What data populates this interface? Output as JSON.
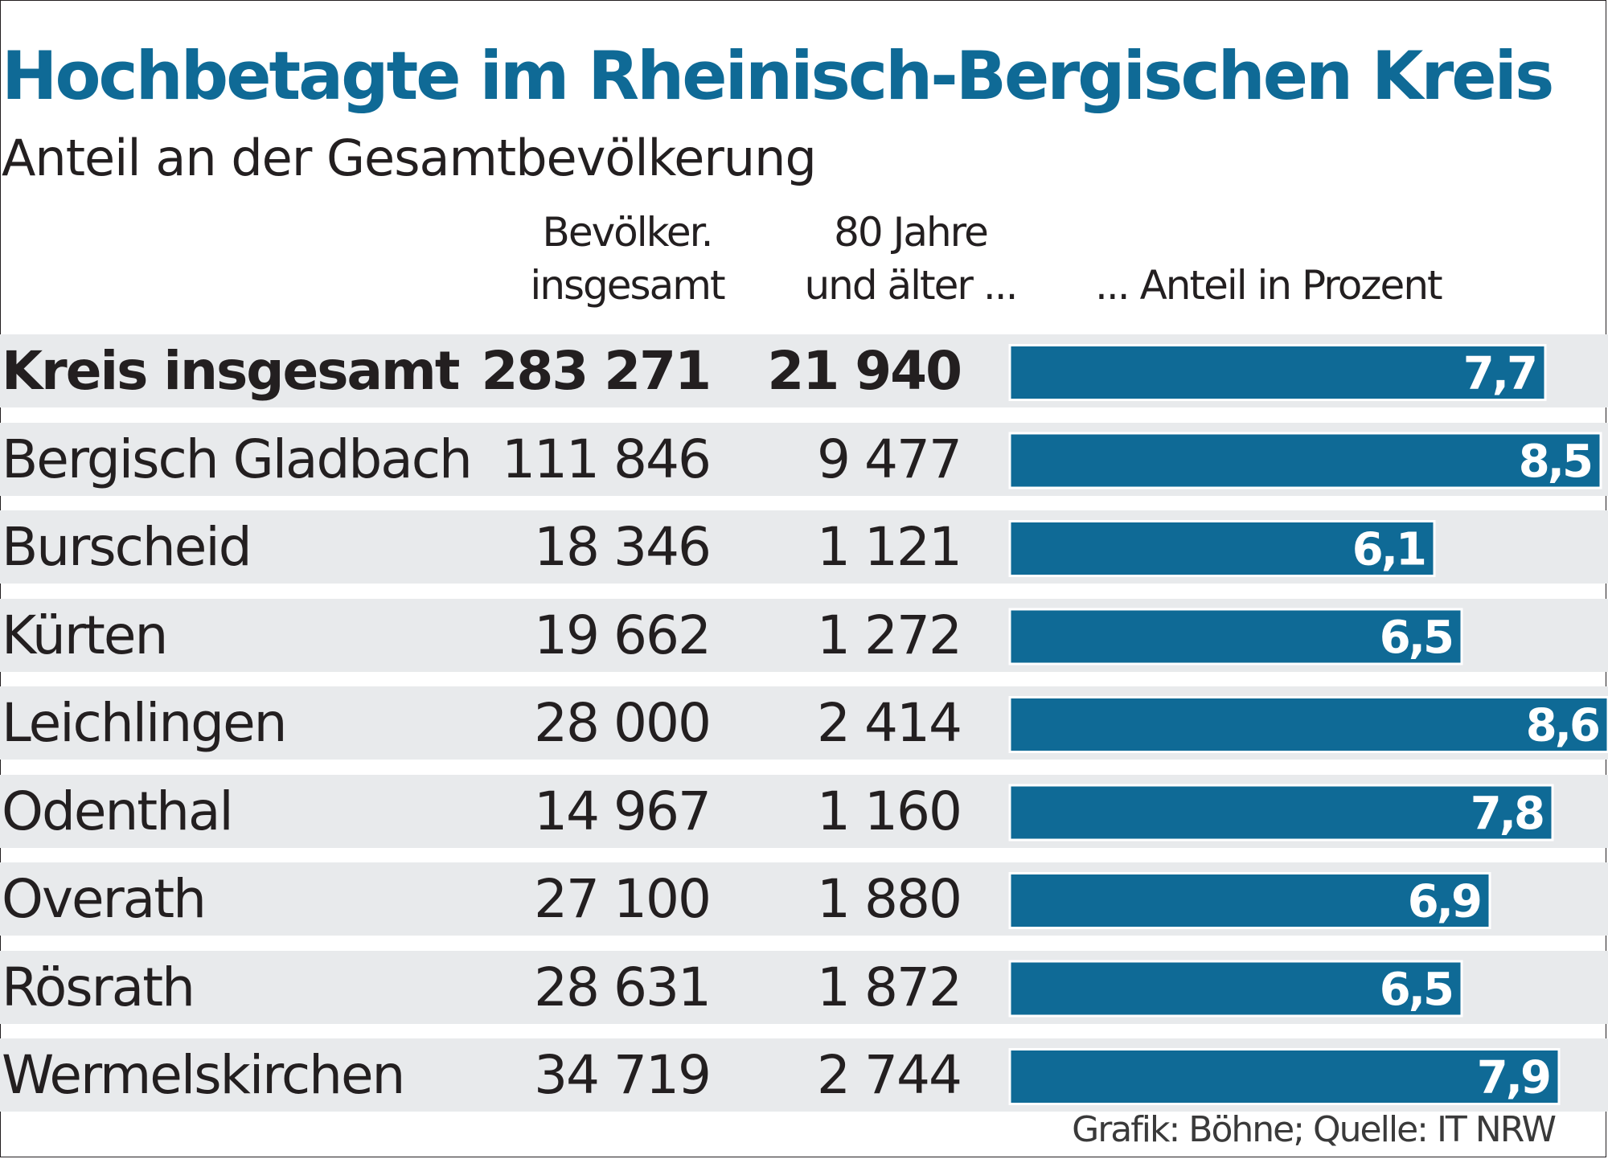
{
  "title": "Hochbetagte im Rheinisch-Bergischen Kreis",
  "subtitle": "Anteil an der Gesamtbevölkerung",
  "columns": {
    "population_line1": "Bevölker.",
    "population_line2": "insgesamt",
    "age80_line1": "80 Jahre",
    "age80_line2": "und älter ...",
    "share": "... Anteil in Prozent"
  },
  "rows": [
    {
      "name": "Kreis insgesamt",
      "population": "283 271",
      "age80": "21 940",
      "share": "7,7",
      "bold": true
    },
    {
      "name": "Bergisch Gladbach",
      "population": "111 846",
      "age80": "9 477",
      "share": "8,5"
    },
    {
      "name": "Burscheid",
      "population": "18 346",
      "age80": "1 121",
      "share": "6,1"
    },
    {
      "name": "Kürten",
      "population": "19 662",
      "age80": "1 272",
      "share": "6,5"
    },
    {
      "name": "Leichlingen",
      "population": "28 000",
      "age80": "2 414",
      "share": "8,6"
    },
    {
      "name": "Odenthal",
      "population": "14 967",
      "age80": "1 160",
      "share": "7,8"
    },
    {
      "name": "Overath",
      "population": "27 100",
      "age80": "1 880",
      "share": "6,9"
    },
    {
      "name": "Rösrath",
      "population": "28 631",
      "age80": "1 872",
      "share": "6,5"
    },
    {
      "name": "Wermelskirchen",
      "population": "34 719",
      "age80": "2 744",
      "share": "7,9"
    }
  ],
  "source": "Grafik: Böhne; Quelle: IT NRW",
  "colors": {
    "bar": "#0f6a96",
    "title": "#0f6a96",
    "row_band": "#e8eaec"
  },
  "chart_data": {
    "type": "bar",
    "orientation": "horizontal",
    "title": "Hochbetagte im Rheinisch-Bergischen Kreis",
    "subtitle": "Anteil an der Gesamtbevölkerung",
    "categories": [
      "Kreis insgesamt",
      "Bergisch Gladbach",
      "Burscheid",
      "Kürten",
      "Leichlingen",
      "Odenthal",
      "Overath",
      "Rösrath",
      "Wermelskirchen"
    ],
    "values": [
      7.7,
      8.5,
      6.1,
      6.5,
      8.6,
      7.8,
      6.9,
      6.5,
      7.9
    ],
    "xlabel": "... Anteil in Prozent",
    "ylabel": "",
    "xlim": [
      0,
      8.6
    ],
    "grid": false
  }
}
